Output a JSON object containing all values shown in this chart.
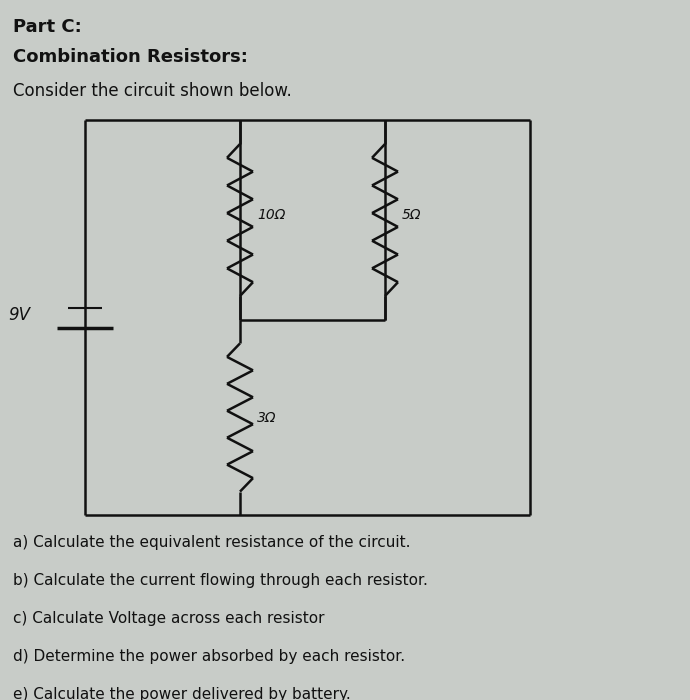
{
  "title_line1": "Part C:",
  "title_line2": "Combination Resistors:",
  "subtitle": "Consider the circuit shown below.",
  "questions": [
    "a) Calculate the equivalent resistance of the circuit.",
    "b) Calculate the current flowing through each resistor.",
    "c) Calculate Voltage across each resistor",
    "d) Determine the power absorbed by each resistor.",
    "e) Calculate the power delivered by battery."
  ],
  "R1_label": "10Ω",
  "R2_label": "5Ω",
  "R3_label": "3Ω",
  "battery_label": "9V",
  "bg_color": "#c8ccc8",
  "text_color": "#111111",
  "line_color": "#111111",
  "fig_width": 6.9,
  "fig_height": 7.0,
  "dpi": 100
}
